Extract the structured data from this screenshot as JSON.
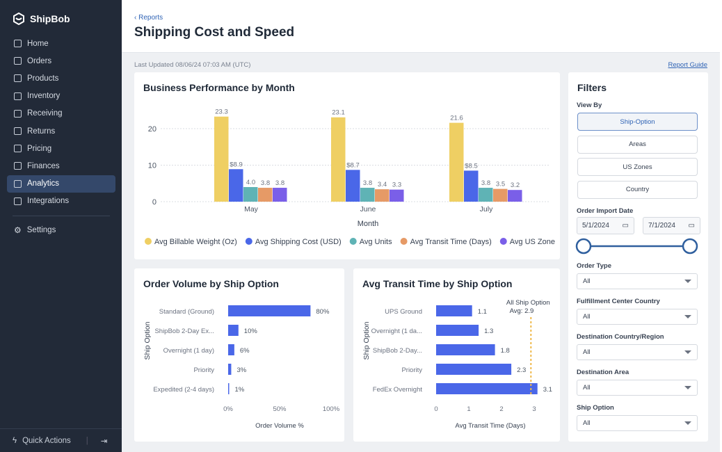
{
  "brand": "ShipBob",
  "sidebar": {
    "items": [
      {
        "label": "Home",
        "icon": "home-icon"
      },
      {
        "label": "Orders",
        "icon": "bag-icon"
      },
      {
        "label": "Products",
        "icon": "product-icon"
      },
      {
        "label": "Inventory",
        "icon": "archive-icon"
      },
      {
        "label": "Receiving",
        "icon": "receiving-icon"
      },
      {
        "label": "Returns",
        "icon": "return-icon"
      },
      {
        "label": "Pricing",
        "icon": "calculator-icon"
      },
      {
        "label": "Finances",
        "icon": "receipt-icon"
      },
      {
        "label": "Analytics",
        "icon": "chart-icon",
        "active": true
      },
      {
        "label": "Integrations",
        "icon": "integration-icon"
      }
    ],
    "settings": "Settings",
    "quick_actions": "Quick Actions"
  },
  "header": {
    "back": "Reports",
    "title": "Shipping Cost and Speed"
  },
  "last_updated": "Last Updated 08/06/24 07:03 AM (UTC)",
  "report_guide": "Report Guide",
  "chart_data": [
    {
      "type": "bar",
      "title": "Business Performance by Month",
      "xlabel": "Month",
      "ylabel": "",
      "ylim": [
        0,
        25
      ],
      "yticks": [
        0,
        10,
        20
      ],
      "grid": true,
      "legend": "bottom",
      "categories": [
        "May",
        "June",
        "July"
      ],
      "series": [
        {
          "name": "Avg Billable Weight (Oz)",
          "color": "#efcf63",
          "values": [
            23.3,
            23.1,
            21.6
          ],
          "labels": [
            "23.3",
            "23.1",
            "21.6"
          ]
        },
        {
          "name": "Avg Shipping Cost (USD)",
          "color": "#4a67e8",
          "values": [
            8.9,
            8.7,
            8.5
          ],
          "labels": [
            "$8.9",
            "$8.7",
            "$8.5"
          ]
        },
        {
          "name": "Avg Units",
          "color": "#5fb3b5",
          "values": [
            4.0,
            3.8,
            3.8
          ],
          "labels": [
            "4.0",
            "3.8",
            "3.8"
          ]
        },
        {
          "name": "Avg Transit Time (Days)",
          "color": "#e69a66",
          "values": [
            3.8,
            3.4,
            3.5
          ],
          "labels": [
            "3.8",
            "3.4",
            "3.5"
          ]
        },
        {
          "name": "Avg US Zone",
          "color": "#7a5fe8",
          "values": [
            3.8,
            3.3,
            3.2
          ],
          "labels": [
            "3.8",
            "3.3",
            "3.2"
          ]
        }
      ]
    },
    {
      "type": "bar",
      "orientation": "horizontal",
      "title": "Order Volume by Ship Option",
      "xlabel": "Order Volume %",
      "ylabel": "Ship Option",
      "xlim": [
        0,
        100
      ],
      "xticks": [
        "0%",
        "50%",
        "100%"
      ],
      "color": "#4a67e8",
      "categories": [
        "Standard (Ground)",
        "ShipBob 2-Day Ex...",
        "Overnight (1 day)",
        "Priority",
        "Expedited (2-4 days)"
      ],
      "values": [
        80,
        10,
        6,
        3,
        1
      ],
      "labels": [
        "80%",
        "10%",
        "6%",
        "3%",
        "1%"
      ]
    },
    {
      "type": "bar",
      "orientation": "horizontal",
      "title": "Avg Transit Time by Ship Option",
      "xlabel": "Avg Transit Time (Days)",
      "ylabel": "Ship Option",
      "xlim": [
        0,
        3.3
      ],
      "xticks": [
        "0",
        "1",
        "2",
        "3"
      ],
      "color": "#4a67e8",
      "categories": [
        "UPS Ground",
        "Overnight (1 da...",
        "ShipBob 2-Day...",
        "Priority",
        "FedEx Overnight"
      ],
      "values": [
        1.1,
        1.3,
        1.8,
        2.3,
        3.1
      ],
      "labels": [
        "1.1",
        "1.3",
        "1.8",
        "2.3",
        "3.1"
      ],
      "reference_line": {
        "value": 2.9,
        "label1": "All Ship Option",
        "label2": "Avg: 2.9",
        "color": "#efb84a"
      }
    }
  ],
  "filters": {
    "title": "Filters",
    "view_by": "View By",
    "view_options": [
      "Ship-Option",
      "Areas",
      "US Zones",
      "Country"
    ],
    "selected_view": "Ship-Option",
    "order_import_date": "Order Import Date",
    "date_from": "5/1/2024",
    "date_to": "7/1/2024",
    "range_fill": 1.0,
    "selects": [
      {
        "label": "Order Type",
        "value": "All"
      },
      {
        "label": "Fulfillment Center Country",
        "value": "All"
      },
      {
        "label": "Destination Country/Region",
        "value": "All"
      },
      {
        "label": "Destination Area",
        "value": "All"
      },
      {
        "label": "Ship Option",
        "value": "All"
      }
    ]
  }
}
